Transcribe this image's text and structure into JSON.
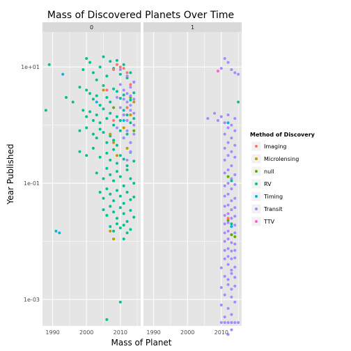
{
  "chart_data": {
    "type": "scatter",
    "title": "Mass of Discovered Planets Over Time",
    "xlabel": "Mass of Planet",
    "ylabel": "Year Published",
    "x_ticks": [
      1990,
      2000,
      2010
    ],
    "x_range": [
      1987,
      2016
    ],
    "y_scale": "log",
    "y_ticks": [
      {
        "value": 10,
        "label": "1e+01"
      },
      {
        "value": 0.1,
        "label": "1e-01"
      },
      {
        "value": 0.001,
        "label": "1e-03"
      }
    ],
    "y_range": [
      0.00035,
      40
    ],
    "grid": true,
    "facets": [
      "0",
      "1"
    ],
    "legend": {
      "title": "Method of Discovery",
      "position": "right",
      "entries": [
        {
          "name": "Imaging",
          "color": "#F8766D"
        },
        {
          "name": "Microlensing",
          "color": "#C49A00"
        },
        {
          "name": "null",
          "color": "#53B400"
        },
        {
          "name": "RV",
          "color": "#00C094"
        },
        {
          "name": "Timing",
          "color": "#00B6EB"
        },
        {
          "name": "Transit",
          "color": "#A58AFF"
        },
        {
          "name": "TTV",
          "color": "#FB61D7"
        }
      ]
    },
    "series": [
      {
        "name": "RV",
        "facet": "0",
        "points": [
          [
            1989,
            11.0
          ],
          [
            1988,
            1.8
          ],
          [
            1994,
            3.0
          ],
          [
            1996,
            2.5
          ],
          [
            1998,
            4.5
          ],
          [
            1999,
            9.0
          ],
          [
            2000,
            14.0
          ],
          [
            2001,
            12.0
          ],
          [
            2002,
            8.0
          ],
          [
            2003,
            6.0
          ],
          [
            2004,
            10.0
          ],
          [
            2005,
            15.0
          ],
          [
            2006,
            7.0
          ],
          [
            2007,
            12.5
          ],
          [
            2008,
            9.5
          ],
          [
            2009,
            13.0
          ],
          [
            2010,
            7.5
          ],
          [
            2011,
            11.0
          ],
          [
            2012,
            6.5
          ],
          [
            2013,
            8.0
          ],
          [
            2014,
            5.5
          ],
          [
            2000,
            4.0
          ],
          [
            2001,
            3.5
          ],
          [
            2002,
            2.8
          ],
          [
            2003,
            3.2
          ],
          [
            2004,
            2.2
          ],
          [
            2005,
            4.8
          ],
          [
            2006,
            3.0
          ],
          [
            2007,
            2.5
          ],
          [
            2008,
            4.2
          ],
          [
            2009,
            3.8
          ],
          [
            2010,
            2.9
          ],
          [
            2011,
            3.3
          ],
          [
            2012,
            2.0
          ],
          [
            2013,
            2.7
          ],
          [
            2014,
            3.6
          ],
          [
            1999,
            1.8
          ],
          [
            2000,
            1.4
          ],
          [
            2001,
            1.7
          ],
          [
            2002,
            1.2
          ],
          [
            2003,
            1.5
          ],
          [
            2004,
            1.1
          ],
          [
            2005,
            1.9
          ],
          [
            2006,
            1.3
          ],
          [
            2007,
            1.6
          ],
          [
            2008,
            1.0
          ],
          [
            2009,
            1.4
          ],
          [
            2010,
            1.2
          ],
          [
            2011,
            1.8
          ],
          [
            2012,
            1.5
          ],
          [
            2013,
            1.1
          ],
          [
            2014,
            1.3
          ],
          [
            1998,
            0.8
          ],
          [
            2000,
            0.9
          ],
          [
            2002,
            0.7
          ],
          [
            2003,
            0.6
          ],
          [
            2004,
            0.85
          ],
          [
            2005,
            0.75
          ],
          [
            2006,
            0.5
          ],
          [
            2007,
            0.65
          ],
          [
            2008,
            0.55
          ],
          [
            2009,
            0.45
          ],
          [
            2010,
            0.8
          ],
          [
            2011,
            0.6
          ],
          [
            2012,
            0.7
          ],
          [
            2013,
            0.5
          ],
          [
            1998,
            0.35
          ],
          [
            2000,
            0.3
          ],
          [
            2002,
            0.4
          ],
          [
            2004,
            0.28
          ],
          [
            2006,
            0.33
          ],
          [
            2007,
            0.25
          ],
          [
            2008,
            0.38
          ],
          [
            2009,
            0.22
          ],
          [
            2010,
            0.3
          ],
          [
            2011,
            0.26
          ],
          [
            2012,
            0.2
          ],
          [
            2013,
            0.34
          ],
          [
            2014,
            0.24
          ],
          [
            2003,
            0.15
          ],
          [
            2005,
            0.12
          ],
          [
            2006,
            0.18
          ],
          [
            2007,
            0.14
          ],
          [
            2008,
            0.11
          ],
          [
            2009,
            0.16
          ],
          [
            2010,
            0.13
          ],
          [
            2011,
            0.09
          ],
          [
            2012,
            0.17
          ],
          [
            2013,
            0.12
          ],
          [
            2014,
            0.1
          ],
          [
            2004,
            0.07
          ],
          [
            2005,
            0.055
          ],
          [
            2006,
            0.08
          ],
          [
            2007,
            0.065
          ],
          [
            2008,
            0.05
          ],
          [
            2009,
            0.075
          ],
          [
            2010,
            0.06
          ],
          [
            2011,
            0.045
          ],
          [
            2012,
            0.07
          ],
          [
            2013,
            0.052
          ],
          [
            2014,
            0.058
          ],
          [
            2005,
            0.035
          ],
          [
            2006,
            0.028
          ],
          [
            2007,
            0.04
          ],
          [
            2008,
            0.032
          ],
          [
            2009,
            0.025
          ],
          [
            2010,
            0.038
          ],
          [
            2011,
            0.03
          ],
          [
            2012,
            0.022
          ],
          [
            2013,
            0.034
          ],
          [
            2014,
            0.026
          ],
          [
            2007,
            0.018
          ],
          [
            2008,
            0.015
          ],
          [
            2009,
            0.02
          ],
          [
            2010,
            0.017
          ],
          [
            2011,
            0.019
          ],
          [
            2012,
            0.014
          ],
          [
            2013,
            0.016
          ],
          [
            2011,
            0.011
          ],
          [
            2006,
            0.00045
          ],
          [
            2010,
            0.0009
          ]
        ]
      },
      {
        "name": "Imaging",
        "facet": "0",
        "points": [
          [
            2008,
            9.0
          ],
          [
            2009,
            11.0
          ],
          [
            2010,
            10.0
          ],
          [
            2011,
            9.5
          ],
          [
            2012,
            8.0
          ],
          [
            2013,
            5.0
          ],
          [
            2008,
            1.2
          ],
          [
            2006,
            4.0
          ],
          [
            2012,
            2.0
          ]
        ]
      },
      {
        "name": "Microlensing",
        "facet": "0",
        "points": [
          [
            2005,
            4.0
          ],
          [
            2007,
            0.7
          ],
          [
            2008,
            0.5
          ],
          [
            2009,
            0.3
          ],
          [
            2011,
            0.9
          ],
          [
            2012,
            0.4
          ],
          [
            2013,
            1.5
          ],
          [
            2014,
            2.5
          ],
          [
            2007,
            0.015
          ],
          [
            2008,
            0.011
          ]
        ]
      },
      {
        "name": "null",
        "facet": "0",
        "points": [
          [
            2008,
            2.0
          ],
          [
            2011,
            1.5
          ],
          [
            2013,
            3.0
          ],
          [
            2014,
            0.8
          ]
        ]
      },
      {
        "name": "Timing",
        "facet": "0",
        "points": [
          [
            1991,
            0.015
          ],
          [
            1992,
            0.014
          ],
          [
            1993,
            7.5
          ],
          [
            2003,
            2.5
          ],
          [
            2011,
            1.2
          ]
        ]
      },
      {
        "name": "Transit",
        "facet": "0",
        "points": [
          [
            2009,
            3.0
          ],
          [
            2010,
            2.0
          ],
          [
            2010,
            5.0
          ],
          [
            2011,
            4.0
          ],
          [
            2011,
            1.5
          ],
          [
            2012,
            3.5
          ],
          [
            2012,
            2.5
          ],
          [
            2012,
            1.2
          ],
          [
            2013,
            2.2
          ],
          [
            2013,
            4.5
          ],
          [
            2013,
            1.8
          ],
          [
            2013,
            3.2
          ],
          [
            2014,
            2.8
          ],
          [
            2014,
            1.6
          ],
          [
            2014,
            5.5
          ],
          [
            2011,
            0.6
          ],
          [
            2012,
            0.8
          ],
          [
            2013,
            0.5
          ],
          [
            2014,
            0.7
          ],
          [
            2012,
            7.0
          ],
          [
            2010,
            9.0
          ],
          [
            2009,
            0.9
          ],
          [
            2013,
            0.35
          ],
          [
            2014,
            1.0
          ],
          [
            2012,
            0.25
          ],
          [
            2011,
            2.8
          ]
        ]
      },
      {
        "name": "Transit",
        "facet": "1",
        "points": [
          [
            2011,
            14.0
          ],
          [
            2012,
            12.0
          ],
          [
            2013,
            9.0
          ],
          [
            2010,
            9.5
          ],
          [
            2014,
            8.0
          ],
          [
            2015,
            7.5
          ],
          [
            2006,
            1.3
          ],
          [
            2008,
            1.6
          ],
          [
            2009,
            1.2
          ],
          [
            2010,
            1.4
          ],
          [
            2011,
            1.1
          ],
          [
            2012,
            1.5
          ],
          [
            2013,
            1.0
          ],
          [
            2014,
            1.3
          ],
          [
            2011,
            0.7
          ],
          [
            2012,
            0.9
          ],
          [
            2013,
            0.6
          ],
          [
            2014,
            0.8
          ],
          [
            2011,
            0.4
          ],
          [
            2012,
            0.5
          ],
          [
            2013,
            0.35
          ],
          [
            2014,
            0.45
          ],
          [
            2011,
            0.25
          ],
          [
            2012,
            0.3
          ],
          [
            2013,
            0.2
          ],
          [
            2014,
            0.28
          ],
          [
            2011,
            0.15
          ],
          [
            2012,
            0.17
          ],
          [
            2013,
            0.12
          ],
          [
            2014,
            0.14
          ],
          [
            2011,
            0.09
          ],
          [
            2012,
            0.1
          ],
          [
            2013,
            0.08
          ],
          [
            2014,
            0.095
          ],
          [
            2011,
            0.06
          ],
          [
            2012,
            0.065
          ],
          [
            2013,
            0.05
          ],
          [
            2014,
            0.055
          ],
          [
            2011,
            0.04
          ],
          [
            2012,
            0.042
          ],
          [
            2013,
            0.035
          ],
          [
            2014,
            0.038
          ],
          [
            2011,
            0.028
          ],
          [
            2012,
            0.03
          ],
          [
            2013,
            0.025
          ],
          [
            2014,
            0.027
          ],
          [
            2011,
            0.02
          ],
          [
            2012,
            0.021
          ],
          [
            2013,
            0.018
          ],
          [
            2014,
            0.019
          ],
          [
            2011,
            0.014
          ],
          [
            2012,
            0.015
          ],
          [
            2013,
            0.013
          ],
          [
            2014,
            0.014
          ],
          [
            2011,
            0.01
          ],
          [
            2012,
            0.011
          ],
          [
            2013,
            0.0095
          ],
          [
            2014,
            0.009
          ],
          [
            2011,
            0.007
          ],
          [
            2012,
            0.0075
          ],
          [
            2013,
            0.0068
          ],
          [
            2014,
            0.007
          ],
          [
            2011,
            0.005
          ],
          [
            2012,
            0.0055
          ],
          [
            2013,
            0.005
          ],
          [
            2014,
            0.0052
          ],
          [
            2010,
            0.0035
          ],
          [
            2012,
            0.004
          ],
          [
            2013,
            0.0032
          ],
          [
            2014,
            0.0036
          ],
          [
            2011,
            0.0025
          ],
          [
            2012,
            0.0022
          ],
          [
            2013,
            0.0028
          ],
          [
            2014,
            0.0024
          ],
          [
            2010,
            0.0016
          ],
          [
            2012,
            0.0018
          ],
          [
            2013,
            0.0015
          ],
          [
            2014,
            0.0017
          ],
          [
            2011,
            0.0012
          ],
          [
            2013,
            0.0011
          ],
          [
            2010,
            0.0008
          ],
          [
            2012,
            0.0007
          ],
          [
            2014,
            0.0009
          ],
          [
            2011,
            0.0005
          ],
          [
            2013,
            0.00055
          ],
          [
            2010,
            0.0004
          ],
          [
            2011,
            0.0004
          ],
          [
            2012,
            0.0004
          ],
          [
            2013,
            0.0004
          ],
          [
            2014,
            0.0004
          ],
          [
            2015,
            0.0004
          ],
          [
            2013,
            0.0003
          ],
          [
            2012,
            0.00025
          ]
        ]
      },
      {
        "name": "RV",
        "facet": "1",
        "points": [
          [
            2015,
            2.5
          ],
          [
            2013,
            0.11
          ],
          [
            2013,
            0.02
          ]
        ]
      },
      {
        "name": "Timing",
        "facet": "1",
        "points": [
          [
            2012,
            1.1
          ],
          [
            2013,
            0.018
          ]
        ]
      },
      {
        "name": "null",
        "facet": "1",
        "points": [
          [
            2012,
            0.13
          ],
          [
            2013,
            0.013
          ],
          [
            2012,
            0.023
          ],
          [
            2014,
            0.012
          ]
        ]
      },
      {
        "name": "Imaging",
        "facet": "1",
        "points": [
          [
            2012,
            0.025
          ]
        ]
      },
      {
        "name": "TTV",
        "facet": "1",
        "points": [
          [
            2009,
            8.5
          ]
        ]
      }
    ]
  }
}
